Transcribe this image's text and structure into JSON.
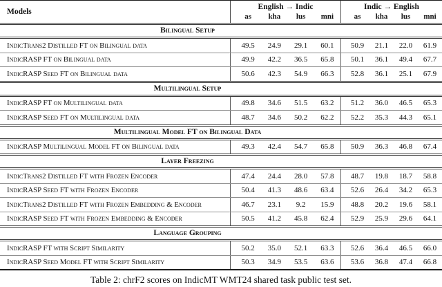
{
  "table": {
    "caption": "Table 2: chrF2 scores on IndicMT WMT24 shared task public test set.",
    "header": {
      "models_label": "Models",
      "group1": "English → Indic",
      "group2": "Indic → English",
      "subcols": [
        "as",
        "kha",
        "lus",
        "mni"
      ]
    },
    "sections": [
      {
        "title": "Bilingual Setup",
        "rows": [
          {
            "model": "IndicTrans2 Distilled FT on Bilingual data",
            "en_indic": [
              "49.5",
              "24.9",
              "29.1",
              "60.1"
            ],
            "indic_en": [
              "50.9",
              "21.1",
              "22.0",
              "61.9"
            ]
          },
          {
            "model": "IndicRASP FT on Bilingual data",
            "en_indic": [
              "49.9",
              "42.2",
              "36.5",
              "65.8"
            ],
            "indic_en": [
              "50.1",
              "36.1",
              "49.4",
              "67.7"
            ]
          },
          {
            "model": "IndicRASP Seed FT on Bilingual data",
            "en_indic": [
              "50.6",
              "42.3",
              "54.9",
              "66.3"
            ],
            "indic_en": [
              "52.8",
              "36.1",
              "25.1",
              "67.9"
            ]
          }
        ]
      },
      {
        "title": "Multilingual Setup",
        "rows": [
          {
            "model": "IndicRASP FT on Multilingual data",
            "en_indic": [
              "49.8",
              "34.6",
              "51.5",
              "63.2"
            ],
            "indic_en": [
              "51.2",
              "36.0",
              "46.5",
              "65.3"
            ]
          },
          {
            "model": "IndicRASP Seed FT on Multilingual data",
            "en_indic": [
              "48.7",
              "34.6",
              "50.2",
              "62.2"
            ],
            "indic_en": [
              "52.2",
              "35.3",
              "44.3",
              "65.1"
            ]
          }
        ]
      },
      {
        "title": "Multilingual Model FT on Bilingual Data",
        "rows": [
          {
            "model": "IndicRASP Multilingual Model FT on Bilingual data",
            "en_indic": [
              "49.3",
              "42.4",
              "54.7",
              "65.8"
            ],
            "indic_en": [
              "50.9",
              "36.3",
              "46.8",
              "67.4"
            ]
          }
        ]
      },
      {
        "title": "Layer Freezing",
        "rows": [
          {
            "model": "IndicTrans2 Distilled FT with Frozen Encoder",
            "en_indic": [
              "47.4",
              "24.4",
              "28.0",
              "57.8"
            ],
            "indic_en": [
              "48.7",
              "19.8",
              "18.7",
              "58.8"
            ]
          },
          {
            "model": "IndicRASP Seed FT with Frozen Encoder",
            "en_indic": [
              "50.4",
              "41.3",
              "48.6",
              "63.4"
            ],
            "indic_en": [
              "52.6",
              "26.4",
              "34.2",
              "65.3"
            ]
          },
          {
            "model": "IndicTrans2 Distilled FT with Frozen Embedding & Encoder",
            "en_indic": [
              "46.7",
              "23.1",
              "9.2",
              "15.9"
            ],
            "indic_en": [
              "48.8",
              "20.2",
              "19.6",
              "58.1"
            ]
          },
          {
            "model": "IndicRASP Seed FT with Frozen Embedding & Encoder",
            "en_indic": [
              "50.5",
              "41.2",
              "45.8",
              "62.4"
            ],
            "indic_en": [
              "52.9",
              "25.9",
              "29.6",
              "64.1"
            ]
          }
        ]
      },
      {
        "title": "Language Grouping",
        "rows": [
          {
            "model": "IndicRASP FT with Script Similarity",
            "en_indic": [
              "50.2",
              "35.0",
              "52.1",
              "63.3"
            ],
            "indic_en": [
              "52.6",
              "36.4",
              "46.5",
              "66.0"
            ]
          },
          {
            "model": "IndicRASP Seed Model FT with Script Similarity",
            "en_indic": [
              "50.3",
              "34.9",
              "53.5",
              "63.6"
            ],
            "indic_en": [
              "53.6",
              "36.8",
              "47.4",
              "66.8"
            ]
          }
        ]
      }
    ]
  }
}
